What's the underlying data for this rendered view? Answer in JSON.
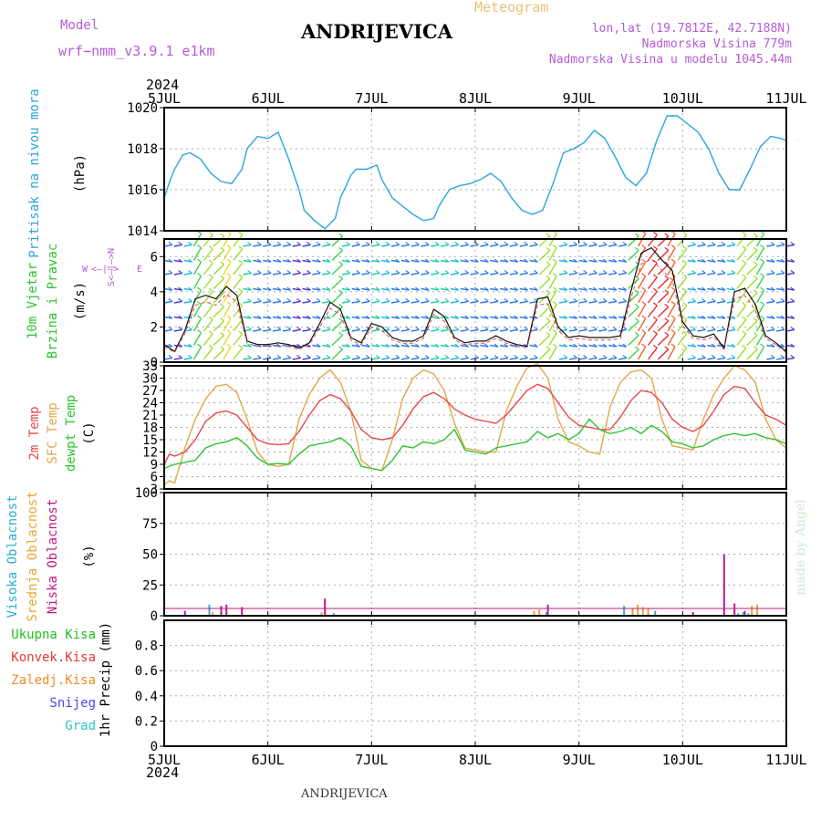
{
  "header": {
    "model_label": "Model",
    "model_name": "wrf−nmm_v3.9.1  e1km",
    "title": "ANDRIJEVICA",
    "meteogram": "Meteogram",
    "lonlat": "lon,lat (19.7812E, 42.7188N)",
    "elevation": "Nadmorska Visina 779m",
    "model_elevation": "Nadmorska Visina u modelu 1045.44m",
    "year": "2024",
    "footer": "ANDRIJEVICA",
    "watermark": "made by Angel"
  },
  "colors": {
    "pressure": "#2aa6de",
    "temp2m": "#e8484a",
    "sfc": "#e3a84a",
    "dewpt": "#2ec42e",
    "high_cloud": "#2ab0d6",
    "mid_cloud": "#e8a830",
    "low_cloud": "#c01a8a",
    "precip_total": "#22c022",
    "precip_conv": "#e33a3a",
    "precip_frz": "#f28a2a",
    "snow": "#4a4ae8",
    "hail": "#2ac6c6",
    "model": "#b45cd6"
  },
  "chart_data": [
    {
      "type": "line",
      "panel": "pressure",
      "y_labels": [
        "Pritisak na nivou mora",
        "(hPa)"
      ],
      "x_ticks": [
        "5JUL",
        "6JUL",
        "7JUL",
        "8JUL",
        "9JUL",
        "10JUL",
        "11JUL"
      ],
      "ylim": [
        1014,
        1020
      ],
      "y_ticks": [
        1014,
        1016,
        1018,
        1020
      ],
      "grid": true,
      "series": [
        {
          "x": [
            0,
            0.06,
            0.1,
            0.18,
            0.25,
            0.35,
            0.45,
            0.55,
            0.65,
            0.75,
            0.8,
            0.9,
            1.0,
            1.1,
            1.2,
            1.3,
            1.35,
            1.45,
            1.55,
            1.65,
            1.7,
            1.8,
            1.85,
            1.95,
            2.05,
            2.1,
            2.2,
            2.3,
            2.4,
            2.5,
            2.6,
            2.65,
            2.75,
            2.85,
            2.95,
            3.05,
            3.15,
            3.25,
            3.35,
            3.45,
            3.55,
            3.65,
            3.75,
            3.85,
            3.95,
            4.05,
            4.15,
            4.25,
            4.35,
            4.45,
            4.55,
            4.65,
            4.75,
            4.85,
            4.95,
            5.05,
            5.15,
            5.25,
            5.35,
            5.45,
            5.55,
            5.65,
            5.75,
            5.85,
            5.95,
            6.0
          ],
          "y": [
            1015.6,
            1016.5,
            1017.0,
            1017.7,
            1017.8,
            1017.5,
            1016.8,
            1016.4,
            1016.3,
            1017.0,
            1018.0,
            1018.6,
            1018.5,
            1018.8,
            1017.5,
            1016.0,
            1015.0,
            1014.5,
            1014.1,
            1014.6,
            1015.6,
            1016.7,
            1017.0,
            1017.0,
            1017.2,
            1016.5,
            1015.6,
            1015.2,
            1014.8,
            1014.5,
            1014.6,
            1015.2,
            1016.0,
            1016.2,
            1016.3,
            1016.5,
            1016.8,
            1016.4,
            1015.6,
            1015.0,
            1014.8,
            1015.0,
            1016.3,
            1017.8,
            1018.0,
            1018.3,
            1018.9,
            1018.5,
            1017.6,
            1016.6,
            1016.2,
            1016.8,
            1018.4,
            1019.6,
            1019.6,
            1019.2,
            1018.8,
            1018.0,
            1016.8,
            1016.0,
            1016.0,
            1017.0,
            1018.1,
            1018.6,
            1018.5,
            1018.4
          ]
        }
      ]
    },
    {
      "type": "line",
      "panel": "wind",
      "y_labels": [
        "10m Vjetar",
        "Brzina i Pravac",
        "(m/s)"
      ],
      "compass": {
        "n": "N",
        "s": "S",
        "e": "E",
        "w": "W"
      },
      "ylim": [
        0,
        7
      ],
      "y_ticks": [
        0,
        2,
        4,
        6
      ],
      "grid": true,
      "series": [
        {
          "name": "wind speed",
          "x": [
            0,
            0.1,
            0.2,
            0.3,
            0.4,
            0.5,
            0.6,
            0.7,
            0.8,
            0.9,
            1.0,
            1.1,
            1.2,
            1.3,
            1.4,
            1.5,
            1.6,
            1.7,
            1.8,
            1.9,
            2.0,
            2.1,
            2.2,
            2.3,
            2.4,
            2.5,
            2.6,
            2.7,
            2.8,
            2.9,
            3.0,
            3.1,
            3.2,
            3.3,
            3.4,
            3.5,
            3.6,
            3.7,
            3.8,
            3.9,
            4.0,
            4.1,
            4.2,
            4.3,
            4.4,
            4.5,
            4.6,
            4.7,
            4.8,
            4.9,
            5.0,
            5.1,
            5.2,
            5.3,
            5.4,
            5.5,
            5.6,
            5.7,
            5.8,
            5.9,
            6.0
          ],
          "y": [
            1.0,
            0.6,
            1.8,
            3.6,
            3.8,
            3.6,
            4.3,
            3.8,
            1.2,
            1.0,
            1.0,
            1.1,
            1.0,
            0.8,
            1.1,
            2.2,
            3.4,
            3.0,
            1.4,
            1.1,
            2.2,
            2.0,
            1.4,
            1.2,
            1.2,
            1.5,
            3.0,
            2.6,
            1.4,
            1.1,
            1.2,
            1.2,
            1.5,
            1.2,
            1.0,
            0.9,
            3.6,
            3.7,
            2.0,
            1.4,
            1.5,
            1.4,
            1.4,
            1.4,
            1.5,
            4.0,
            6.2,
            6.5,
            5.8,
            5.2,
            2.3,
            1.5,
            1.4,
            1.6,
            0.8,
            4.0,
            4.2,
            3.3,
            1.5,
            1.1,
            0.6
          ]
        }
      ]
    },
    {
      "type": "line",
      "panel": "temperature",
      "y_labels": [
        "2m Temp",
        "SFC Temp",
        "dewpt Temp",
        "(C)"
      ],
      "ylim": [
        3,
        33
      ],
      "y_ticks": [
        3,
        6,
        9,
        12,
        15,
        18,
        21,
        24,
        27,
        30,
        33
      ],
      "grid": true,
      "series": [
        {
          "name": "2m Temp",
          "x": [
            0,
            0.05,
            0.1,
            0.2,
            0.3,
            0.4,
            0.5,
            0.6,
            0.7,
            0.8,
            0.9,
            1.0,
            1.1,
            1.2,
            1.3,
            1.4,
            1.5,
            1.6,
            1.7,
            1.8,
            1.9,
            2.0,
            2.1,
            2.2,
            2.3,
            2.4,
            2.5,
            2.6,
            2.7,
            2.8,
            2.9,
            3.0,
            3.1,
            3.2,
            3.3,
            3.4,
            3.5,
            3.6,
            3.7,
            3.8,
            3.9,
            4.0,
            4.1,
            4.2,
            4.3,
            4.4,
            4.5,
            4.6,
            4.7,
            4.8,
            4.9,
            5.0,
            5.1,
            5.2,
            5.3,
            5.4,
            5.5,
            5.6,
            5.7,
            5.8,
            5.9,
            6.0
          ],
          "y": [
            9.0,
            11.5,
            11.0,
            12.0,
            15.0,
            19.5,
            21.5,
            22.0,
            21.0,
            18.0,
            15.0,
            14.0,
            13.8,
            14.0,
            17.0,
            21.0,
            24.5,
            26.0,
            25.0,
            22.0,
            17.5,
            15.5,
            15.0,
            15.5,
            18.5,
            22.5,
            25.5,
            26.5,
            25.0,
            22.5,
            21.0,
            20.0,
            19.5,
            19.0,
            21.0,
            24.0,
            27.0,
            28.5,
            27.5,
            24.0,
            20.5,
            18.5,
            18.0,
            17.5,
            17.5,
            20.5,
            24.5,
            27.0,
            26.5,
            24.0,
            20.0,
            18.0,
            17.0,
            18.5,
            22.0,
            26.0,
            28.0,
            27.5,
            24.0,
            21.0,
            20.0,
            18.5
          ]
        },
        {
          "name": "SFC Temp",
          "x": [
            0,
            0.05,
            0.1,
            0.2,
            0.3,
            0.4,
            0.5,
            0.6,
            0.7,
            0.8,
            0.9,
            1.0,
            1.1,
            1.2,
            1.3,
            1.4,
            1.5,
            1.6,
            1.7,
            1.8,
            1.9,
            2.0,
            2.1,
            2.2,
            2.3,
            2.4,
            2.5,
            2.6,
            2.7,
            2.8,
            2.9,
            3.0,
            3.1,
            3.2,
            3.3,
            3.4,
            3.5,
            3.6,
            3.7,
            3.8,
            3.9,
            4.0,
            4.1,
            4.2,
            4.3,
            4.4,
            4.5,
            4.6,
            4.7,
            4.8,
            4.9,
            5.0,
            5.1,
            5.2,
            5.3,
            5.4,
            5.5,
            5.6,
            5.7,
            5.8,
            5.9,
            6.0
          ],
          "y": [
            4.0,
            5.0,
            4.5,
            13.0,
            20.0,
            25.0,
            28.0,
            28.5,
            26.5,
            20.0,
            12.0,
            9.0,
            8.5,
            9.0,
            20.0,
            26.0,
            30.0,
            32.0,
            29.0,
            22.0,
            10.0,
            8.0,
            7.5,
            15.0,
            25.0,
            30.0,
            32.0,
            31.0,
            27.0,
            19.0,
            13.0,
            12.5,
            12.0,
            12.0,
            22.0,
            28.0,
            32.5,
            33.5,
            30.0,
            20.0,
            14.5,
            13.5,
            12.0,
            11.5,
            23.0,
            29.0,
            31.5,
            32.0,
            30.0,
            20.0,
            13.5,
            13.0,
            12.5,
            20.0,
            26.0,
            30.0,
            33.0,
            32.0,
            29.0,
            20.0,
            15.0,
            13.0
          ]
        },
        {
          "name": "dewpt Temp",
          "x": [
            0,
            0.1,
            0.2,
            0.3,
            0.4,
            0.5,
            0.6,
            0.7,
            0.8,
            0.9,
            1.0,
            1.1,
            1.2,
            1.3,
            1.4,
            1.5,
            1.6,
            1.7,
            1.8,
            1.9,
            2.0,
            2.1,
            2.2,
            2.3,
            2.4,
            2.5,
            2.6,
            2.7,
            2.8,
            2.9,
            3.0,
            3.1,
            3.2,
            3.3,
            3.4,
            3.5,
            3.6,
            3.7,
            3.8,
            3.9,
            4.0,
            4.1,
            4.2,
            4.3,
            4.4,
            4.5,
            4.6,
            4.7,
            4.8,
            4.9,
            5.0,
            5.1,
            5.2,
            5.3,
            5.4,
            5.5,
            5.6,
            5.7,
            5.8,
            5.9,
            6.0
          ],
          "y": [
            8.0,
            9.0,
            9.5,
            10.0,
            13.0,
            14.0,
            14.5,
            15.5,
            13.5,
            10.5,
            9.0,
            9.2,
            9.0,
            11.5,
            13.5,
            14.0,
            14.5,
            15.5,
            13.5,
            8.5,
            8.0,
            7.5,
            10.0,
            13.5,
            13.0,
            14.5,
            14.0,
            15.0,
            17.5,
            12.5,
            12.0,
            11.5,
            13.0,
            13.5,
            14.0,
            14.5,
            17.0,
            15.5,
            16.5,
            15.0,
            16.5,
            20.0,
            17.5,
            16.5,
            17.0,
            18.0,
            16.5,
            18.5,
            17.0,
            14.5,
            14.0,
            13.0,
            13.5,
            15.0,
            16.0,
            16.5,
            16.0,
            16.5,
            15.5,
            15.0,
            14.0
          ]
        }
      ]
    },
    {
      "type": "bar",
      "panel": "cloud",
      "y_labels": [
        "Visoka Oblacnost",
        "Srednja Oblacnost",
        "Niska Oblacnost",
        "(%)"
      ],
      "ylim": [
        0,
        100
      ],
      "y_ticks": [
        0,
        25,
        50,
        75,
        100
      ],
      "grid": true,
      "series": [
        {
          "name": "Niska Oblacnost",
          "x": [
            0.2,
            0.55,
            0.6,
            0.75,
            1.55,
            3.7,
            5.1,
            5.4,
            5.5,
            5.6
          ],
          "values": [
            4,
            8,
            9,
            7,
            14,
            9,
            3,
            50,
            10,
            4
          ]
        },
        {
          "name": "Srednja Oblacnost",
          "x": [
            0.45,
            1.5,
            3.55,
            3.6,
            4.5,
            4.55,
            4.6,
            4.65,
            5.65,
            5.7
          ],
          "values": [
            3,
            3,
            4,
            5,
            6,
            9,
            7,
            6,
            8,
            9
          ]
        },
        {
          "name": "Visoka Oblacnost",
          "x": [
            0.4,
            1.6,
            3.65,
            4.4,
            4.7,
            5.5,
            5.55,
            5.6
          ],
          "values": [
            9,
            2,
            3,
            8,
            4,
            2,
            3,
            2
          ]
        }
      ]
    },
    {
      "type": "bar",
      "panel": "precip",
      "y_labels": [
        "Ukupna Kisa",
        "Konvek.Kisa",
        "Zaledj.Kisa",
        "Snijeg",
        "Grad",
        "1hr Precip (mm)"
      ],
      "ylim": [
        0,
        1
      ],
      "y_ticks": [
        0,
        0.2,
        0.4,
        0.6,
        0.8
      ],
      "grid": true,
      "series": []
    }
  ]
}
